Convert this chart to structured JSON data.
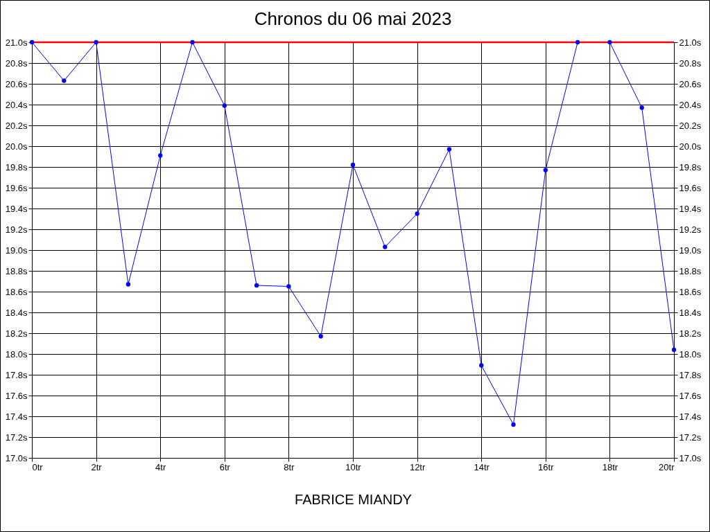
{
  "chart_data": {
    "type": "line",
    "title": "Chronos du 06 mai 2023",
    "xlabel": "FABRICE MIANDY",
    "x": [
      0,
      1,
      2,
      3,
      4,
      5,
      6,
      7,
      8,
      9,
      10,
      11,
      12,
      13,
      14,
      15,
      16,
      17,
      18,
      19,
      20
    ],
    "series": [
      {
        "color": "#0000ff",
        "values": [
          21.0,
          20.63,
          21.0,
          18.67,
          19.91,
          21.0,
          20.39,
          18.66,
          18.65,
          18.17,
          19.82,
          19.03,
          19.35,
          19.97,
          17.89,
          17.32,
          19.77,
          21.0,
          21.0,
          20.37,
          18.04
        ]
      }
    ],
    "marker": "circle",
    "line_style": "solid",
    "grid": true,
    "xlim": [
      0,
      20
    ],
    "xticks": [
      {
        "value": 0,
        "label": "0tr"
      },
      {
        "value": 2,
        "label": "2tr"
      },
      {
        "value": 4,
        "label": "4tr"
      },
      {
        "value": 6,
        "label": "6tr"
      },
      {
        "value": 8,
        "label": "8tr"
      },
      {
        "value": 10,
        "label": "10tr"
      },
      {
        "value": 12,
        "label": "12tr"
      },
      {
        "value": 14,
        "label": "14tr"
      },
      {
        "value": 16,
        "label": "16tr"
      },
      {
        "value": 18,
        "label": "18tr"
      },
      {
        "value": 20,
        "label": "20tr"
      }
    ],
    "ylim": [
      17.0,
      21.0
    ],
    "yticks": [
      {
        "value": 17.0,
        "label": "17.0s"
      },
      {
        "value": 17.2,
        "label": "17.2s"
      },
      {
        "value": 17.4,
        "label": "17.4s"
      },
      {
        "value": 17.6,
        "label": "17.6s"
      },
      {
        "value": 17.8,
        "label": "17.8s"
      },
      {
        "value": 18.0,
        "label": "18.0s"
      },
      {
        "value": 18.2,
        "label": "18.2s"
      },
      {
        "value": 18.4,
        "label": "18.4s"
      },
      {
        "value": 18.6,
        "label": "18.6s"
      },
      {
        "value": 18.8,
        "label": "18.8s"
      },
      {
        "value": 19.0,
        "label": "19.0s"
      },
      {
        "value": 19.2,
        "label": "19.2s"
      },
      {
        "value": 19.4,
        "label": "19.4s"
      },
      {
        "value": 19.6,
        "label": "19.6s"
      },
      {
        "value": 19.8,
        "label": "19.8s"
      },
      {
        "value": 20.0,
        "label": "20.0s"
      },
      {
        "value": 20.2,
        "label": "20.2s"
      },
      {
        "value": 20.4,
        "label": "20.4s"
      },
      {
        "value": 20.6,
        "label": "20.6s"
      },
      {
        "value": 20.8,
        "label": "20.8s"
      },
      {
        "value": 21.0,
        "label": "21.0s"
      }
    ],
    "y2lim": [
      17.0,
      21.0
    ],
    "y2ticks": [
      {
        "value": 17.0,
        "label": "17.0s"
      },
      {
        "value": 17.2,
        "label": "17.2s"
      },
      {
        "value": 17.4,
        "label": "17.4s"
      },
      {
        "value": 17.6,
        "label": "17.6s"
      },
      {
        "value": 17.8,
        "label": "17.8s"
      },
      {
        "value": 18.0,
        "label": "18.0s"
      },
      {
        "value": 18.2,
        "label": "18.2s"
      },
      {
        "value": 18.4,
        "label": "18.4s"
      },
      {
        "value": 18.6,
        "label": "18.6s"
      },
      {
        "value": 18.8,
        "label": "18.8s"
      },
      {
        "value": 19.0,
        "label": "19.0s"
      },
      {
        "value": 19.2,
        "label": "19.2s"
      },
      {
        "value": 19.4,
        "label": "19.4s"
      },
      {
        "value": 19.6,
        "label": "19.6s"
      },
      {
        "value": 19.8,
        "label": "19.8s"
      },
      {
        "value": 20.0,
        "label": "20.0s"
      },
      {
        "value": 20.2,
        "label": "20.2s"
      },
      {
        "value": 20.4,
        "label": "20.4s"
      },
      {
        "value": 20.6,
        "label": "20.6s"
      },
      {
        "value": 20.8,
        "label": "20.8s"
      },
      {
        "value": 21.0,
        "label": "21.0s"
      }
    ],
    "ref_lines": [
      {
        "axis": "y",
        "value": 21.0,
        "color": "#ff0000"
      }
    ]
  }
}
